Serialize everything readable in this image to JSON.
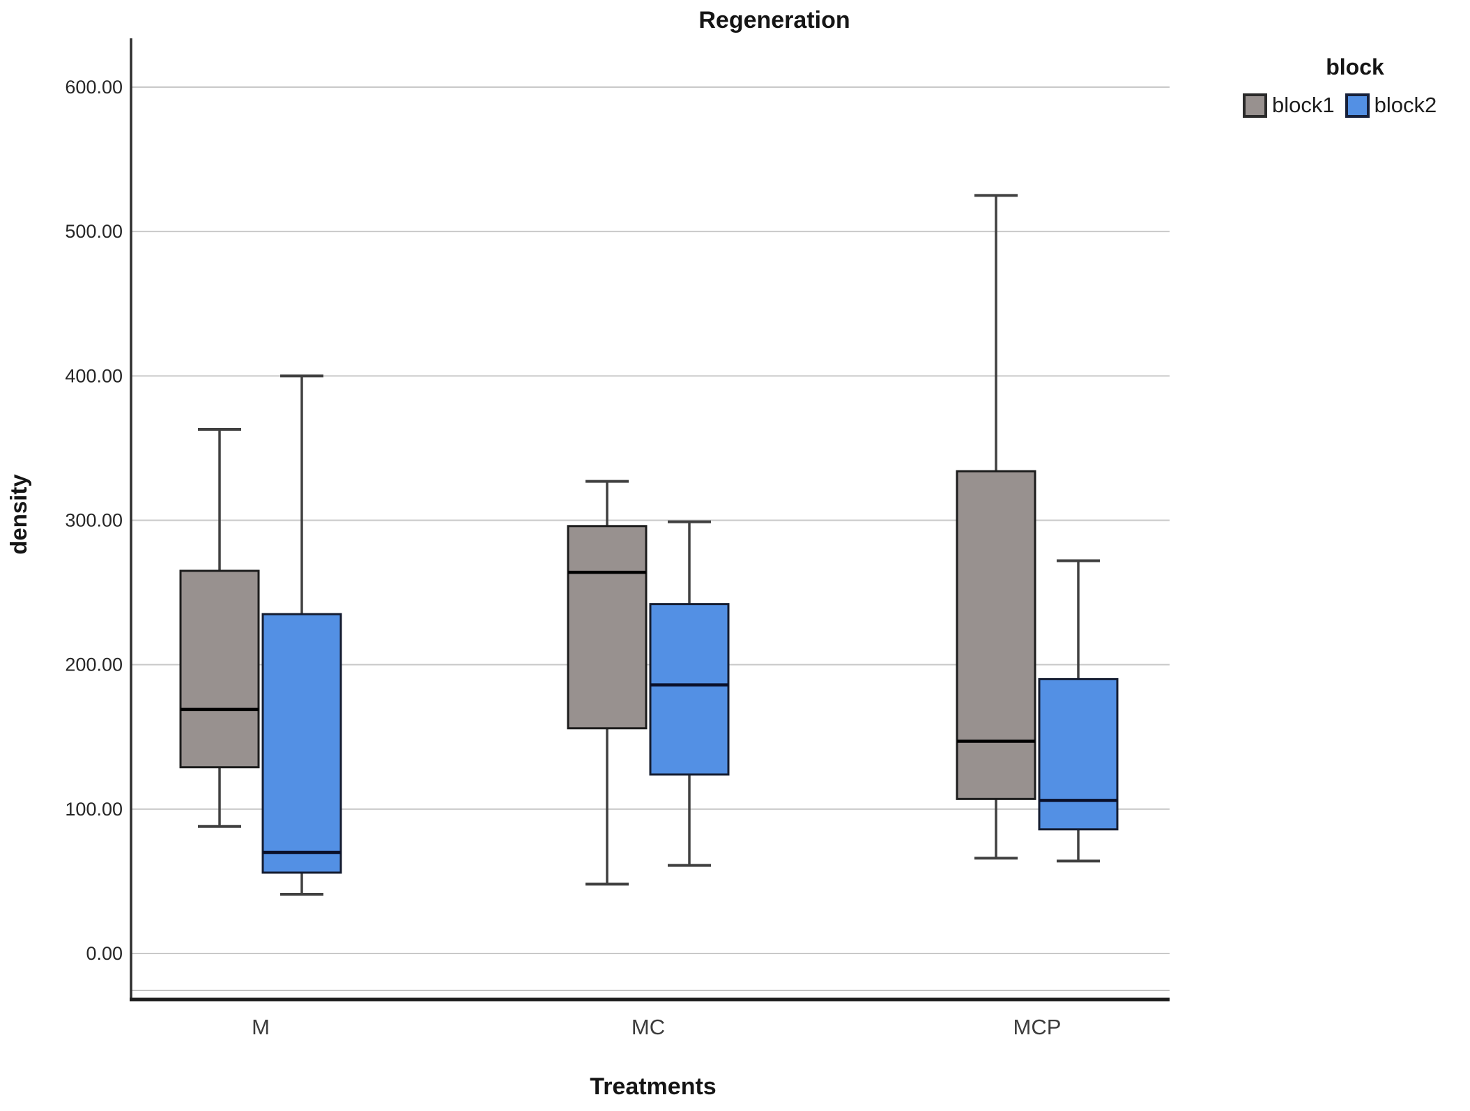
{
  "title": "Regeneration",
  "legend": {
    "title": "block",
    "items": [
      {
        "label": "block1",
        "fill": "#98918f",
        "border": "#2a2a2a"
      },
      {
        "label": "block2",
        "fill": "#5390e4",
        "border": "#16203a"
      }
    ]
  },
  "axes": {
    "y_title": "density",
    "x_title": "Treatments"
  },
  "chart_data": {
    "type": "boxplot",
    "title": "Regeneration",
    "xlabel": "Treatments",
    "ylabel": "density",
    "legend_title": "block",
    "legend_position": "top-right",
    "grid": "horizontal",
    "grid_color": "#c9c9c9",
    "ylim": [
      0,
      600
    ],
    "yticks": [
      {
        "value": 0,
        "label": "0.00"
      },
      {
        "value": 100,
        "label": "100.00"
      },
      {
        "value": 200,
        "label": "200.00"
      },
      {
        "value": 300,
        "label": "300.00"
      },
      {
        "value": 400,
        "label": "400.00"
      },
      {
        "value": 500,
        "label": "500.00"
      },
      {
        "value": 600,
        "label": "600.00"
      }
    ],
    "categories": [
      "M",
      "MC",
      "MCP"
    ],
    "series": [
      {
        "name": "block1",
        "fill": "#98918f",
        "border": "#1c1c1c",
        "median_color": "#000000",
        "whisker_color": "#404040",
        "boxes": [
          {
            "category": "M",
            "whisker_low": 88,
            "q1": 129,
            "median": 169,
            "q3": 265,
            "whisker_high": 363
          },
          {
            "category": "MC",
            "whisker_low": 48,
            "q1": 156,
            "median": 264,
            "q3": 296,
            "whisker_high": 327
          },
          {
            "category": "MCP",
            "whisker_low": 66,
            "q1": 107,
            "median": 147,
            "q3": 334,
            "whisker_high": 525
          }
        ]
      },
      {
        "name": "block2",
        "fill": "#5390e4",
        "border": "#141c30",
        "median_color": "#0a102a",
        "whisker_color": "#404040",
        "boxes": [
          {
            "category": "M",
            "whisker_low": 41,
            "q1": 56,
            "median": 70,
            "q3": 235,
            "whisker_high": 400
          },
          {
            "category": "MC",
            "whisker_low": 61,
            "q1": 124,
            "median": 186,
            "q3": 242,
            "whisker_high": 299
          },
          {
            "category": "MCP",
            "whisker_low": 64,
            "q1": 86,
            "median": 106,
            "q3": 190,
            "whisker_high": 272
          }
        ]
      }
    ]
  }
}
